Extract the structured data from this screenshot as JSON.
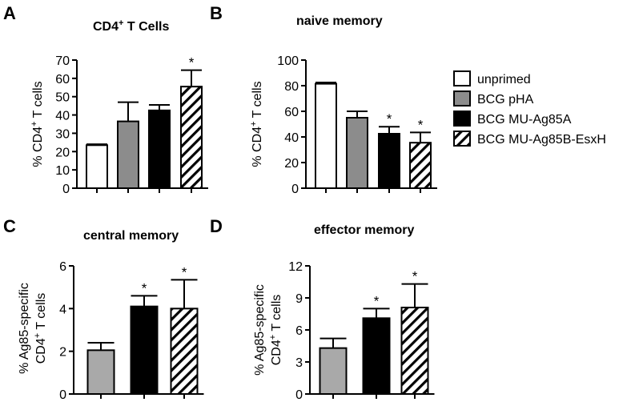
{
  "legend": {
    "entries": [
      {
        "label": "unprimed",
        "fill": "#ffffff",
        "pattern": "none"
      },
      {
        "label": "BCG pHA",
        "fill": "#8c8c8c",
        "pattern": "none"
      },
      {
        "label": "BCG MU-Ag85A",
        "fill": "#000000",
        "pattern": "none"
      },
      {
        "label": "BCG MU-Ag85B-EsxH",
        "fill": "#ffffff",
        "pattern": "hatch"
      }
    ]
  },
  "chart_data": [
    {
      "type": "bar",
      "panel": "A",
      "title": "CD4",
      "title_sup": "+",
      "title_rest": " T Cells",
      "ylabel": "% CD4+ T cells",
      "ylim": [
        0,
        70
      ],
      "yticks": [
        0,
        10,
        20,
        30,
        40,
        50,
        60,
        70
      ],
      "categories": [
        "unprimed",
        "BCG pHA",
        "BCG MU-Ag85A",
        "BCG MU-Ag85B-EsxH"
      ],
      "values": [
        23.5,
        36.5,
        42.5,
        55.5
      ],
      "errors": [
        0.5,
        10.5,
        3,
        9
      ],
      "significant": [
        false,
        false,
        false,
        true
      ],
      "fills": [
        "#ffffff",
        "#8c8c8c",
        "#000000",
        "hatch"
      ]
    },
    {
      "type": "bar",
      "panel": "B",
      "title": "naive memory",
      "ylabel": "% CD4+ T cells",
      "ylim": [
        0,
        100
      ],
      "yticks": [
        0,
        20,
        40,
        60,
        80,
        100
      ],
      "categories": [
        "unprimed",
        "BCG pHA",
        "BCG MU-Ag85A",
        "BCG MU-Ag85B-EsxH"
      ],
      "values": [
        81.5,
        55,
        42.5,
        35.5
      ],
      "errors": [
        1,
        5,
        5.5,
        8
      ],
      "significant": [
        false,
        false,
        true,
        true
      ],
      "fills": [
        "#ffffff",
        "#8c8c8c",
        "#000000",
        "hatch"
      ]
    },
    {
      "type": "bar",
      "panel": "C",
      "title": "central memory",
      "ylabel": "% Ag85-specific CD4+ T cells",
      "ylim": [
        0,
        6
      ],
      "yticks": [
        0,
        2,
        4,
        6
      ],
      "categories": [
        "BCG pHA",
        "BCG MU-Ag85A",
        "BCG MU-Ag85B-EsxH"
      ],
      "values": [
        2.05,
        4.1,
        4.0
      ],
      "errors": [
        0.35,
        0.5,
        1.35
      ],
      "significant": [
        false,
        true,
        true
      ],
      "fills": [
        "#a9a9a9",
        "#000000",
        "hatch"
      ]
    },
    {
      "type": "bar",
      "panel": "D",
      "title": "effector memory",
      "ylabel": "% Ag85-specific CD4+ T cells",
      "ylim": [
        0,
        12
      ],
      "yticks": [
        0,
        3,
        6,
        9,
        12
      ],
      "categories": [
        "BCG pHA",
        "BCG MU-Ag85A",
        "BCG MU-Ag85B-EsxH"
      ],
      "values": [
        4.3,
        7.1,
        8.1
      ],
      "errors": [
        0.9,
        0.9,
        2.2
      ],
      "significant": [
        false,
        true,
        true
      ],
      "fills": [
        "#a9a9a9",
        "#000000",
        "hatch"
      ]
    }
  ]
}
